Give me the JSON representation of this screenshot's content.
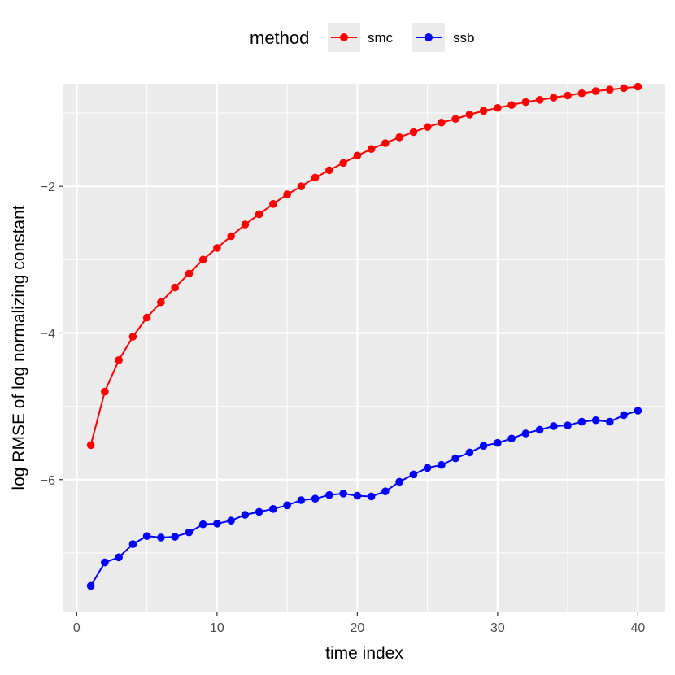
{
  "legend": {
    "title": "method",
    "items": [
      {
        "label": "smc",
        "color": "#ff0000"
      },
      {
        "label": "ssb",
        "color": "#0000ff"
      }
    ]
  },
  "chart_data": {
    "type": "line",
    "xlabel": "time index",
    "ylabel": "log RMSE of log normalizing constant",
    "xlim": [
      -0.95,
      41.95
    ],
    "ylim": [
      -7.8,
      -0.6
    ],
    "xticks": [
      0,
      10,
      20,
      30,
      40
    ],
    "xtick_labels": [
      "0",
      "10",
      "20",
      "30",
      "40"
    ],
    "yticks": [
      -6,
      -4,
      -2
    ],
    "ytick_labels": [
      "−6",
      "−4",
      "−2"
    ],
    "grid": true,
    "legend_position": "top",
    "x": [
      1,
      2,
      3,
      4,
      5,
      6,
      7,
      8,
      9,
      10,
      11,
      12,
      13,
      14,
      15,
      16,
      17,
      18,
      19,
      20,
      21,
      22,
      23,
      24,
      25,
      26,
      27,
      28,
      29,
      30,
      31,
      32,
      33,
      34,
      35,
      36,
      37,
      38,
      39,
      40
    ],
    "series": [
      {
        "name": "smc",
        "color": "#ff0000",
        "values": [
          -5.53,
          -4.8,
          -4.37,
          -4.05,
          -3.79,
          -3.58,
          -3.38,
          -3.19,
          -3.0,
          -2.84,
          -2.68,
          -2.52,
          -2.38,
          -2.24,
          -2.11,
          -2.0,
          -1.88,
          -1.78,
          -1.68,
          -1.58,
          -1.49,
          -1.41,
          -1.33,
          -1.26,
          -1.19,
          -1.13,
          -1.08,
          -1.02,
          -0.97,
          -0.93,
          -0.89,
          -0.85,
          -0.82,
          -0.79,
          -0.76,
          -0.73,
          -0.7,
          -0.68,
          -0.66,
          -0.64
        ]
      },
      {
        "name": "ssb",
        "color": "#0000ff",
        "values": [
          -7.45,
          -7.13,
          -7.06,
          -6.88,
          -6.77,
          -6.79,
          -6.78,
          -6.72,
          -6.61,
          -6.6,
          -6.56,
          -6.48,
          -6.44,
          -6.4,
          -6.35,
          -6.28,
          -6.26,
          -6.21,
          -6.19,
          -6.22,
          -6.23,
          -6.16,
          -6.03,
          -5.93,
          -5.84,
          -5.8,
          -5.71,
          -5.63,
          -5.54,
          -5.5,
          -5.44,
          -5.37,
          -5.32,
          -5.27,
          -5.26,
          -5.21,
          -5.19,
          -5.21,
          -5.12,
          -5.06
        ]
      }
    ]
  }
}
